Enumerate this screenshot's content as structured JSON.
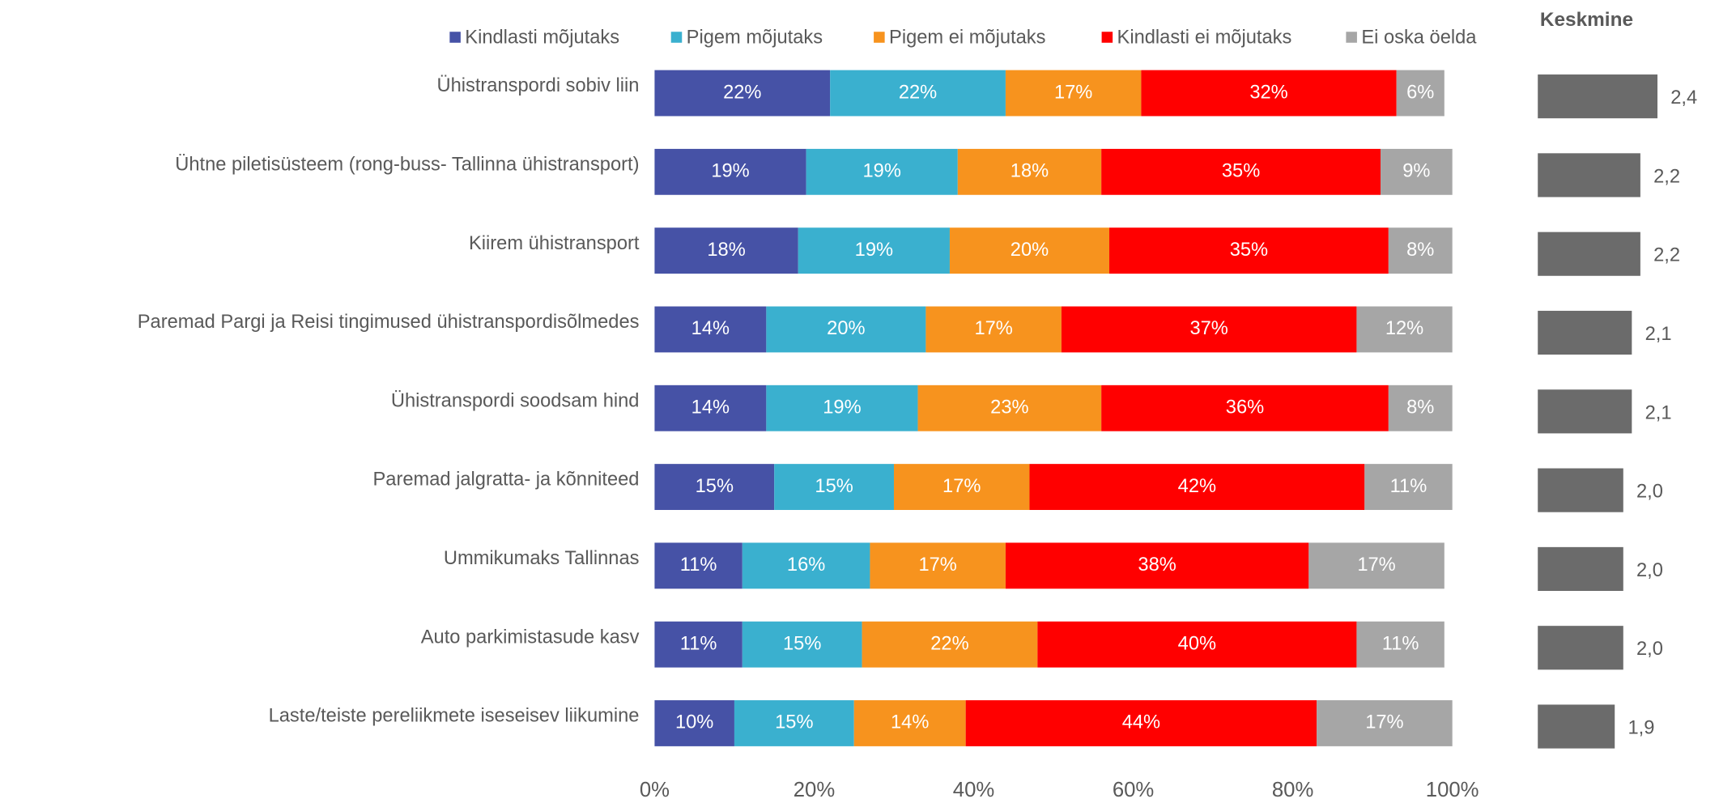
{
  "chart_data": [
    {
      "type": "stacked-bar-horizontal",
      "categories": [
        "Ühistranspordi sobiv liin",
        "Ühtne piletisüsteem (rong-buss- Tallinna ühistransport)",
        "Kiirem ühistransport",
        "Paremad Pargi ja Reisi tingimused ühistranspordisõlmedes",
        "Ühistranspordi soodsam hind",
        "Paremad jalgratta- ja kõnniteed",
        "Ummikumaks Tallinnas",
        "Auto parkimistasude kasv",
        "Laste/teiste pereliikmete iseseisev liikumine"
      ],
      "series": [
        {
          "name": "Kindlasti mõjutaks",
          "color": "#4652a6",
          "values": [
            22,
            19,
            18,
            14,
            14,
            15,
            11,
            11,
            10
          ],
          "value_labels": [
            "22%",
            "19%",
            "18%",
            "14%",
            "14%",
            "15%",
            "11%",
            "11%",
            "10%"
          ]
        },
        {
          "name": "Pigem mõjutaks",
          "color": "#3ab0cf",
          "values": [
            22,
            19,
            19,
            20,
            19,
            15,
            16,
            15,
            15
          ],
          "value_labels": [
            "22%",
            "19%",
            "19%",
            "20%",
            "19%",
            "15%",
            "16%",
            "15%",
            "15%"
          ]
        },
        {
          "name": "Pigem ei mõjutaks",
          "color": "#f7931e",
          "values": [
            17,
            18,
            20,
            17,
            23,
            17,
            17,
            22,
            14
          ],
          "value_labels": [
            "17%",
            "18%",
            "20%",
            "17%",
            "23%",
            "17%",
            "17%",
            "22%",
            "14%"
          ]
        },
        {
          "name": "Kindlasti ei mõjutaks",
          "color": "#ff0000",
          "values": [
            32,
            35,
            35,
            37,
            36,
            42,
            38,
            40,
            44
          ],
          "value_labels": [
            "32%",
            "35%",
            "35%",
            "37%",
            "36%",
            "42%",
            "38%",
            "40%",
            "44%"
          ]
        },
        {
          "name": "Ei oska öelda",
          "color": "#a6a6a6",
          "values": [
            6,
            9,
            8,
            12,
            8,
            11,
            17,
            11,
            17
          ],
          "value_labels": [
            "6%",
            "9%",
            "8%",
            "12%",
            "8%",
            "11%",
            "17%",
            "11%",
            "17%"
          ]
        }
      ],
      "xlim": [
        0,
        100
      ],
      "xticks": [
        {
          "value": 0,
          "label": "0%"
        },
        {
          "value": 20,
          "label": "20%"
        },
        {
          "value": 40,
          "label": "40%"
        },
        {
          "value": 60,
          "label": "60%"
        },
        {
          "value": 80,
          "label": "80%"
        },
        {
          "value": 100,
          "label": "100%"
        }
      ],
      "legend": "top"
    },
    {
      "type": "bar-horizontal",
      "title": "Keskmine",
      "color": "#6b6b6b",
      "values": [
        2.4,
        2.2,
        2.2,
        2.1,
        2.1,
        2.0,
        2.0,
        2.0,
        1.9
      ],
      "value_labels": [
        "2,4",
        "2,2",
        "2,2",
        "2,1",
        "2,1",
        "2,0",
        "2,0",
        "2,0",
        "1,9"
      ],
      "xlim": [
        1,
        4
      ]
    }
  ]
}
